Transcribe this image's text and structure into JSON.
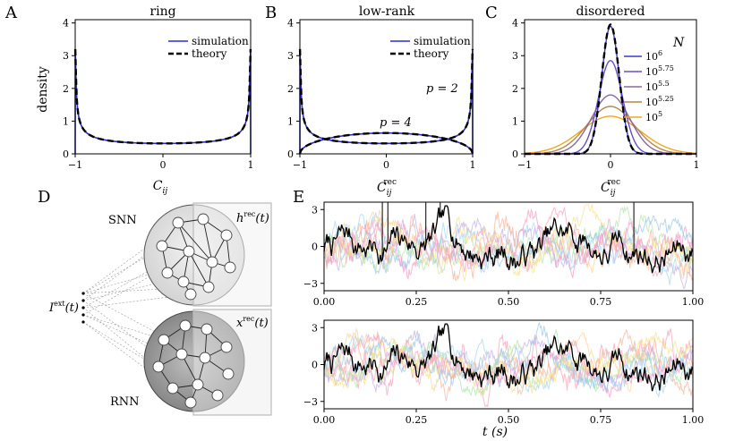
{
  "panel_labels": {
    "A": "A",
    "B": "B",
    "C": "C",
    "D": "D",
    "E": "E"
  },
  "chart_data": [
    {
      "id": "A",
      "type": "line",
      "title": "ring",
      "xlabel": "C",
      "xlabel_sub": "ij",
      "ylabel": "density",
      "xlim": [
        -1,
        1
      ],
      "ylim": [
        0,
        4.1
      ],
      "xticks": [
        "−1",
        "0",
        "1"
      ],
      "xtick_values": [
        -1,
        0,
        1
      ],
      "yticks": [
        "0",
        "1",
        "2",
        "3",
        "4"
      ],
      "ytick_values": [
        0,
        1,
        2,
        3,
        4
      ],
      "legend": [
        "simulation",
        "theory"
      ],
      "series": [
        {
          "name": "simulation",
          "color": "#2b2bcc",
          "kind": "arcsine"
        },
        {
          "name": "theory",
          "color": "#000000",
          "kind": "arcsine"
        }
      ]
    },
    {
      "id": "B",
      "type": "line",
      "title": "low-rank",
      "xlabel": "C",
      "xlabel_sub": "ij",
      "xlabel_sup": "rec",
      "xlim": [
        -1,
        1
      ],
      "ylim": [
        0,
        4.1
      ],
      "xticks": [
        "−1",
        "0",
        "1"
      ],
      "xtick_values": [
        -1,
        0,
        1
      ],
      "yticks": [
        "0",
        "1",
        "2",
        "3",
        "4"
      ],
      "ytick_values": [
        0,
        1,
        2,
        3,
        4
      ],
      "legend": [
        "simulation",
        "theory"
      ],
      "annotations": [
        "p = 2",
        "p = 4"
      ],
      "series": [
        {
          "name": "p = 2 simulation",
          "color": "#2b2bcc",
          "kind": "arcsine"
        },
        {
          "name": "p = 2 theory",
          "color": "#000000",
          "kind": "arcsine"
        },
        {
          "name": "p = 4 simulation",
          "color": "#2b2bcc",
          "kind": "semicircle"
        },
        {
          "name": "p = 4 theory",
          "color": "#000000",
          "kind": "semicircle"
        }
      ]
    },
    {
      "id": "C",
      "type": "line",
      "title": "disordered",
      "xlabel": "C",
      "xlabel_sub": "ij",
      "xlabel_sup": "rec",
      "xlim": [
        -1,
        1
      ],
      "ylim": [
        0,
        4.1
      ],
      "xticks": [
        "−1",
        "0",
        "1"
      ],
      "xtick_values": [
        -1,
        0,
        1
      ],
      "yticks": [
        "0",
        "1",
        "2",
        "3",
        "4"
      ],
      "ytick_values": [
        0,
        1,
        2,
        3,
        4
      ],
      "legend_title": "N",
      "legend": [
        "10^6",
        "10^5.75",
        "10^5.5",
        "10^5.25",
        "10^5"
      ],
      "legend_base": "10",
      "legend_exponents": [
        "6",
        "5.75",
        "5.5",
        "5.25",
        "5"
      ],
      "series": [
        {
          "name": "10^6",
          "color": "#3a3ad0",
          "peak": 3.9
        },
        {
          "name": "10^5.75",
          "color": "#6a4fc0",
          "peak": 2.85
        },
        {
          "name": "10^5.5",
          "color": "#8a6a9a",
          "peak": 1.8
        },
        {
          "name": "10^5.25",
          "color": "#b8864c",
          "peak": 1.45
        },
        {
          "name": "10^5",
          "color": "#f0a81e",
          "peak": 1.15
        },
        {
          "name": "theory",
          "color": "#000000",
          "peak": 3.95
        }
      ]
    },
    {
      "id": "E-top",
      "type": "line",
      "xlim": [
        0,
        1
      ],
      "ylim": [
        -3.6,
        3.6
      ],
      "xticks": [
        "0.00",
        "0.25",
        "0.50",
        "0.75",
        "1.00"
      ],
      "xtick_values": [
        0,
        0.25,
        0.5,
        0.75,
        1
      ],
      "yticks": [
        "−3",
        "0",
        "3"
      ],
      "ytick_values": [
        -3,
        0,
        3
      ],
      "spikes": [
        0.158,
        0.173,
        0.276,
        0.315,
        0.84
      ],
      "series": [
        {
          "name": "highlighted neuron",
          "color": "#000000"
        },
        {
          "name": "background neurons",
          "colors": [
            "#f4a7b9",
            "#a8d8f0",
            "#f7d79a",
            "#c6b3e6",
            "#b7e4b0",
            "#f3b8a0",
            "#f9e38c",
            "#9ec9e8",
            "#f2a0c8"
          ]
        }
      ]
    },
    {
      "id": "E-bottom",
      "type": "line",
      "xlim": [
        0,
        1
      ],
      "ylim": [
        -3.6,
        3.6
      ],
      "xticks": [
        "0.00",
        "0.25",
        "0.50",
        "0.75",
        "1.00"
      ],
      "xtick_values": [
        0,
        0.25,
        0.5,
        0.75,
        1
      ],
      "yticks": [
        "−3",
        "0",
        "3"
      ],
      "ytick_values": [
        -3,
        0,
        3
      ],
      "xlabel": "t   (s)",
      "series": [
        {
          "name": "highlighted unit",
          "color": "#000000"
        },
        {
          "name": "background units",
          "colors": [
            "#f4a7b9",
            "#a8d8f0",
            "#f7d79a",
            "#c6b3e6",
            "#b7e4b0",
            "#f3b8a0",
            "#f9e38c",
            "#9ec9e8",
            "#f2a0c8"
          ]
        }
      ]
    }
  ],
  "diagram": {
    "snn_label": "SNN",
    "rnn_label": "RNN",
    "h_label": "h",
    "h_sup": "rec",
    "h_arg": "(t)",
    "x_label": "x",
    "x_sup": "rec",
    "x_arg": "(t)",
    "input_label": "I",
    "input_sup": "ext",
    "input_arg": "(t)"
  }
}
